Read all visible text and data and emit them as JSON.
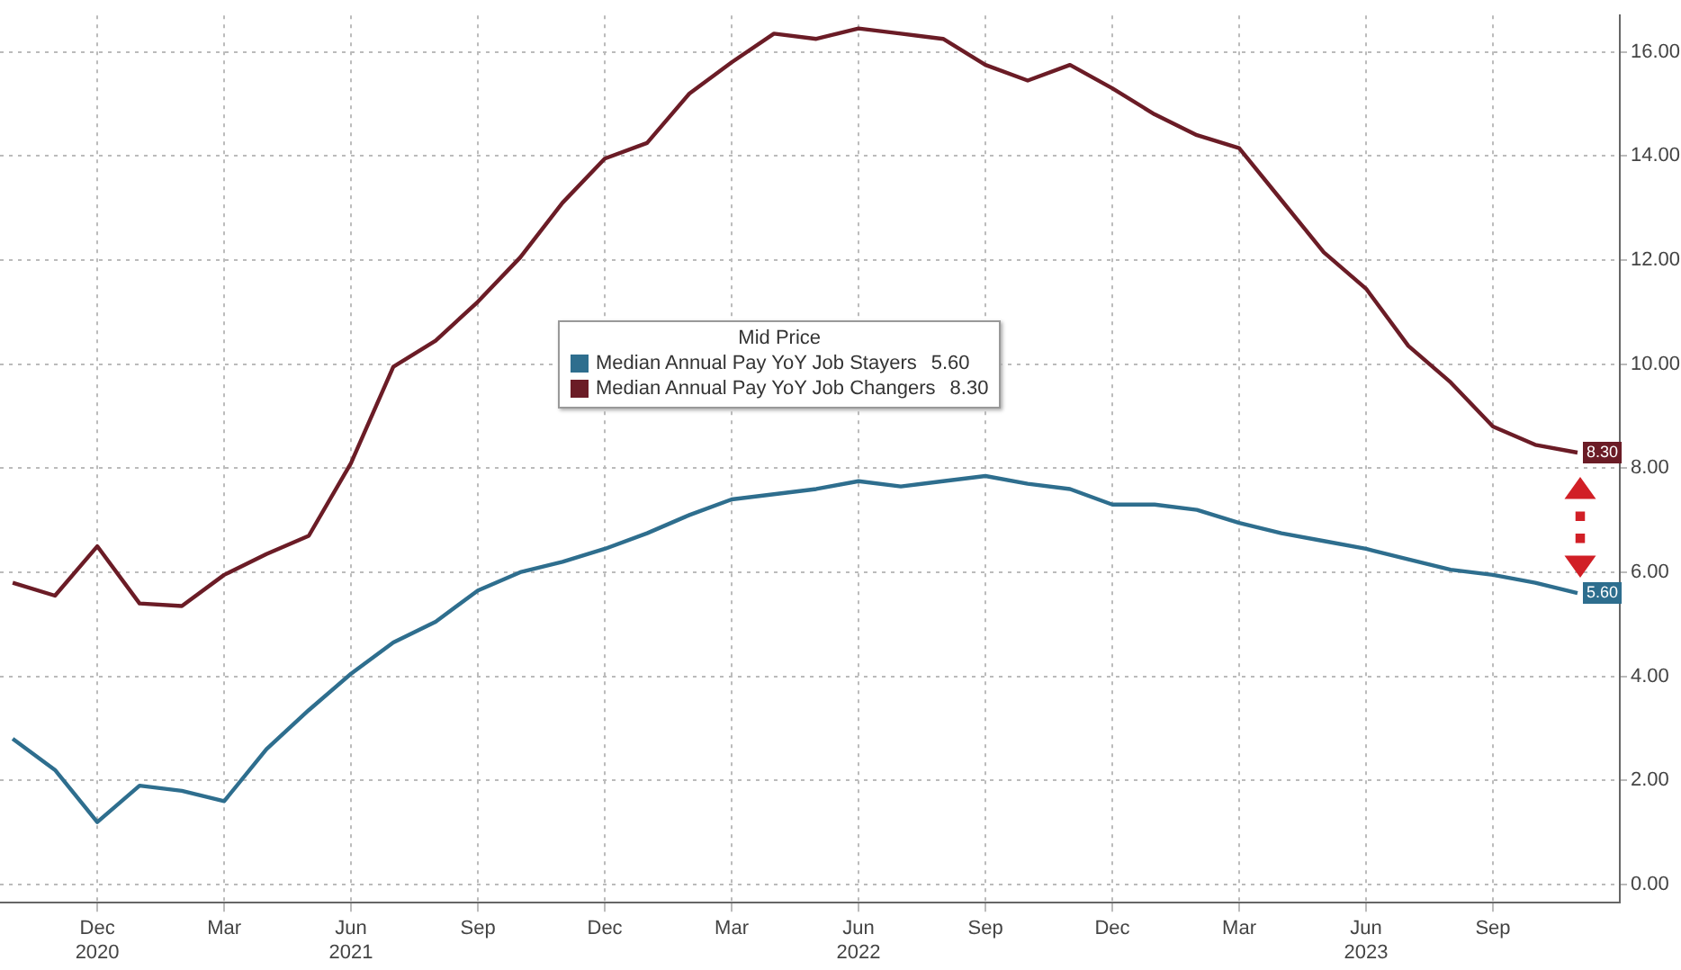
{
  "chart_data": {
    "type": "line",
    "legend_title": "Mid Price",
    "legend": "center",
    "grid": true,
    "marker": "none",
    "x": [
      "2020-10",
      "2020-11",
      "2020-12",
      "2021-01",
      "2021-02",
      "2021-03",
      "2021-04",
      "2021-05",
      "2021-06",
      "2021-07",
      "2021-08",
      "2021-09",
      "2021-10",
      "2021-11",
      "2021-12",
      "2022-01",
      "2022-02",
      "2022-03",
      "2022-04",
      "2022-05",
      "2022-06",
      "2022-07",
      "2022-08",
      "2022-09",
      "2022-10",
      "2022-11",
      "2022-12",
      "2023-01",
      "2023-02",
      "2023-03",
      "2023-04",
      "2023-05",
      "2023-06",
      "2023-07",
      "2023-08",
      "2023-09",
      "2023-10",
      "2023-11"
    ],
    "series": [
      {
        "name": "Median Annual Pay YoY Job Stayers",
        "color": "#2e6e8e",
        "values": [
          2.8,
          2.2,
          1.2,
          1.9,
          1.8,
          1.6,
          2.6,
          3.35,
          4.05,
          4.65,
          5.05,
          5.65,
          6.0,
          6.2,
          6.45,
          6.75,
          7.1,
          7.4,
          7.5,
          7.6,
          7.75,
          7.65,
          7.75,
          7.85,
          7.7,
          7.6,
          7.3,
          7.3,
          7.2,
          6.95,
          6.75,
          6.6,
          6.45,
          6.25,
          6.05,
          5.95,
          5.8,
          5.6
        ],
        "value_labels": [
          null,
          null,
          null,
          null,
          null,
          null,
          null,
          null,
          null,
          null,
          null,
          null,
          null,
          null,
          null,
          null,
          null,
          null,
          null,
          null,
          null,
          null,
          null,
          null,
          null,
          null,
          null,
          null,
          null,
          null,
          null,
          null,
          null,
          null,
          null,
          null,
          null,
          "5.60"
        ]
      },
      {
        "name": "Median Annual Pay YoY Job Changers",
        "color": "#6b1c26",
        "values": [
          5.8,
          5.55,
          6.5,
          5.4,
          5.35,
          5.95,
          6.35,
          6.7,
          8.1,
          9.95,
          10.45,
          11.2,
          12.05,
          13.1,
          13.95,
          14.25,
          15.2,
          15.8,
          16.35,
          16.25,
          16.45,
          16.35,
          16.25,
          15.75,
          15.45,
          15.75,
          15.3,
          14.8,
          14.4,
          14.15,
          13.15,
          12.15,
          11.45,
          10.35,
          9.65,
          8.8,
          8.45,
          8.3
        ],
        "value_labels": [
          null,
          null,
          null,
          null,
          null,
          null,
          null,
          null,
          null,
          null,
          null,
          null,
          null,
          null,
          null,
          null,
          null,
          null,
          null,
          null,
          null,
          null,
          null,
          null,
          null,
          null,
          null,
          null,
          null,
          null,
          null,
          null,
          null,
          null,
          null,
          null,
          null,
          "8.30"
        ]
      }
    ],
    "xlim": [
      "2020-09-22",
      "2023-12-01"
    ],
    "xticks": [
      {
        "value": "2020-12",
        "label": "Dec\n2020"
      },
      {
        "value": "2021-03",
        "label": "Mar"
      },
      {
        "value": "2021-06",
        "label": "Jun\n2021"
      },
      {
        "value": "2021-09",
        "label": "Sep"
      },
      {
        "value": "2021-12",
        "label": "Dec"
      },
      {
        "value": "2022-03",
        "label": "Mar"
      },
      {
        "value": "2022-06",
        "label": "Jun\n2022"
      },
      {
        "value": "2022-09",
        "label": "Sep"
      },
      {
        "value": "2022-12",
        "label": "Dec"
      },
      {
        "value": "2023-03",
        "label": "Mar"
      },
      {
        "value": "2023-06",
        "label": "Jun\n2023"
      },
      {
        "value": "2023-09",
        "label": "Sep"
      }
    ],
    "ylim": [
      -0.35,
      16.7
    ],
    "yticks": [
      {
        "value": 0,
        "label": "0.00"
      },
      {
        "value": 2,
        "label": "2.00"
      },
      {
        "value": 4,
        "label": "4.00"
      },
      {
        "value": 6,
        "label": "6.00"
      },
      {
        "value": 8,
        "label": "8.00"
      },
      {
        "value": 10,
        "label": "10.00"
      },
      {
        "value": 12,
        "label": "12.00"
      },
      {
        "value": 14,
        "label": "14.00"
      },
      {
        "value": 16,
        "label": "16.00"
      }
    ]
  }
}
